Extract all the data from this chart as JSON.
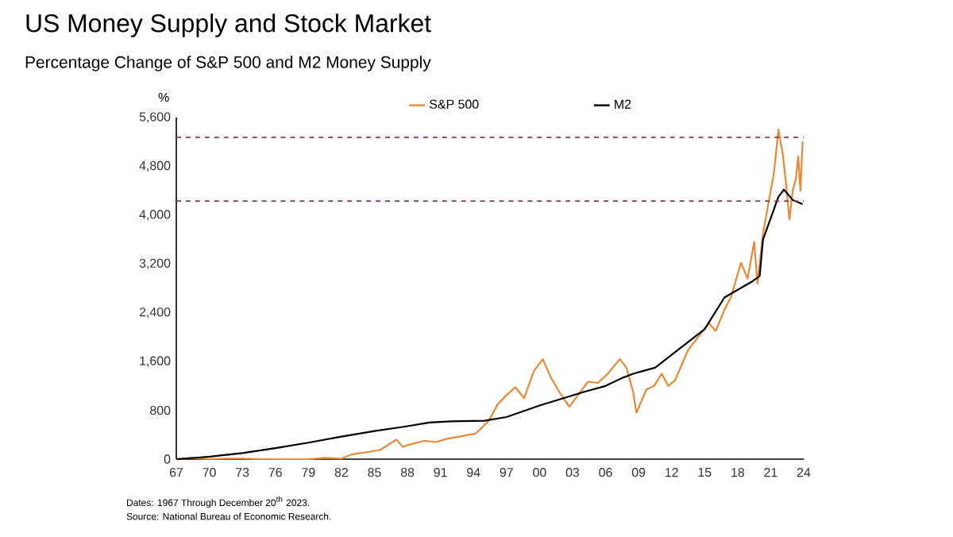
{
  "chart_data": {
    "type": "line",
    "title": "US Money Supply and Stock Market",
    "subtitle": "Percentage Change of S&P 500 and M2 Money Supply",
    "ylabel": "%",
    "series": [
      {
        "name": "S&P 500",
        "color": "#e8893a",
        "x": [
          1967,
          1968.5,
          1970,
          1971.5,
          1973,
          1974.7,
          1976,
          1977.5,
          1979,
          1980.5,
          1982,
          1983,
          1984.5,
          1985.5,
          1987,
          1987.6,
          1988,
          1989.5,
          1990.6,
          1991.5,
          1993,
          1994.2,
          1995.4,
          1996.2,
          1997,
          1997.8,
          1998.6,
          1999.5,
          2000.3,
          2001,
          2001.8,
          2002.7,
          2003.5,
          2004.4,
          2005.3,
          2006.2,
          2007.3,
          2007.9,
          2008.5,
          2008.8,
          2009.7,
          2010.4,
          2011.1,
          2011.7,
          2012.3,
          2013.5,
          2014.4,
          2015.4,
          2016,
          2016.8,
          2017.4,
          2018.3,
          2018.9,
          2019.5,
          2019.8,
          2020.3,
          2020.9,
          2021.3,
          2021.7,
          2022.1,
          2022.4,
          2022.7,
          2023,
          2023.3,
          2023.5,
          2023.7,
          2023.9
        ],
        "values": [
          0,
          20,
          0,
          10,
          10,
          0,
          0,
          0,
          0,
          20,
          10,
          80,
          120,
          150,
          320,
          200,
          230,
          300,
          280,
          330,
          380,
          420,
          630,
          900,
          1050,
          1180,
          1000,
          1450,
          1640,
          1350,
          1100,
          860,
          1050,
          1270,
          1250,
          1400,
          1640,
          1500,
          1100,
          760,
          1140,
          1200,
          1400,
          1200,
          1290,
          1790,
          2000,
          2230,
          2100,
          2450,
          2660,
          3220,
          2960,
          3560,
          2880,
          3700,
          4300,
          4700,
          5400,
          5000,
          4500,
          3930,
          4400,
          4600,
          4960,
          4400,
          5210
        ]
      },
      {
        "name": "M2",
        "color": "#000000",
        "x": [
          1967,
          1970,
          1973,
          1976,
          1979,
          1982,
          1985,
          1988,
          1990,
          1992,
          1995,
          1997,
          1998.6,
          2000,
          2002,
          2004,
          2006,
          2007.5,
          2008.5,
          2009.5,
          2010.5,
          2011.5,
          2013,
          2015,
          2016.8,
          2019.2,
          2020,
          2020.3,
          2021.7,
          2022.2,
          2023,
          2023.9
        ],
        "values": [
          0,
          40,
          100,
          180,
          270,
          370,
          460,
          540,
          600,
          620,
          630,
          690,
          790,
          880,
          990,
          1100,
          1200,
          1330,
          1400,
          1450,
          1500,
          1640,
          1850,
          2130,
          2650,
          2900,
          3000,
          3600,
          4300,
          4420,
          4250,
          4180
        ]
      }
    ],
    "xlim": [
      1967,
      2024
    ],
    "ylim": [
      0,
      5600
    ],
    "xticks": [
      {
        "value": 1967,
        "label": "67"
      },
      {
        "value": 1970,
        "label": "70"
      },
      {
        "value": 1973,
        "label": "73"
      },
      {
        "value": 1976,
        "label": "76"
      },
      {
        "value": 1979,
        "label": "79"
      },
      {
        "value": 1982,
        "label": "82"
      },
      {
        "value": 1985,
        "label": "85"
      },
      {
        "value": 1988,
        "label": "88"
      },
      {
        "value": 1991,
        "label": "91"
      },
      {
        "value": 1994,
        "label": "94"
      },
      {
        "value": 1997,
        "label": "97"
      },
      {
        "value": 2000,
        "label": "00"
      },
      {
        "value": 2003,
        "label": "03"
      },
      {
        "value": 2006,
        "label": "06"
      },
      {
        "value": 2009,
        "label": "09"
      },
      {
        "value": 2012,
        "label": "12"
      },
      {
        "value": 2015,
        "label": "15"
      },
      {
        "value": 2018,
        "label": "18"
      },
      {
        "value": 2021,
        "label": "21"
      },
      {
        "value": 2024,
        "label": "24"
      }
    ],
    "yticks": [
      0,
      800,
      {
        "value": 1600,
        "label": "1,600"
      },
      {
        "value": 2400,
        "label": "2,400"
      },
      {
        "value": 3200,
        "label": "3,200"
      },
      {
        "value": 4000,
        "label": "4,000"
      },
      {
        "value": 4800,
        "label": "4,800"
      },
      {
        "value": 5600,
        "label": "5,600"
      }
    ],
    "ref_lines": [
      {
        "axis": "y",
        "value": 5275,
        "color": "#7f3f4f",
        "line_style": "dashed"
      },
      {
        "axis": "y",
        "value": 4230,
        "color": "#7f3f4f",
        "line_style": "dashed"
      }
    ],
    "legend": "top",
    "marker": "none",
    "line_style": "solid",
    "annotations": [
      "Dates: 1967 Through December 20$^{th}$ 2023.",
      "Source: National Bureau of Economic Research."
    ]
  }
}
